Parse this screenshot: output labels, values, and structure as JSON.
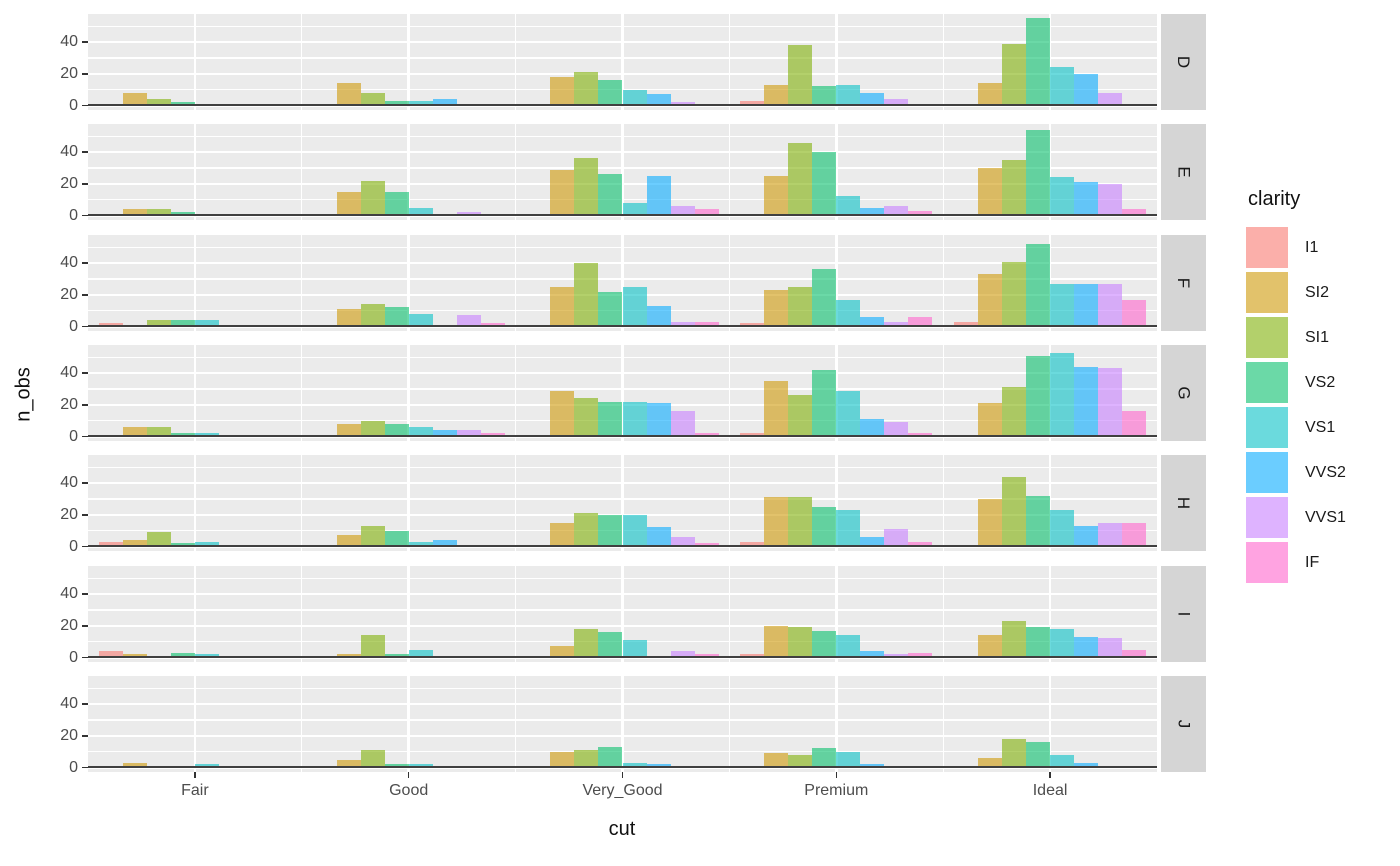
{
  "chart_data": {
    "type": "bar",
    "subtype": "dodged, faceted by row",
    "title": "",
    "xlabel": "cut",
    "ylabel": "n_obs",
    "legend_title": "clarity",
    "legend_position": "right",
    "facet_rows": [
      "D",
      "E",
      "F",
      "G",
      "H",
      "I",
      "J"
    ],
    "categories": [
      "Fair",
      "Good",
      "Very_Good",
      "Premium",
      "Ideal"
    ],
    "series_levels": [
      "I1",
      "SI2",
      "SI1",
      "VS2",
      "VS1",
      "VVS2",
      "VVS1",
      "IF"
    ],
    "series_colors": {
      "I1": "rgba(248,118,109,0.58)",
      "SI2": "rgba(205,150,0,0.58)",
      "SI1": "rgba(124,174,0,0.58)",
      "VS2": "rgba(0,190,103,0.58)",
      "VS1": "rgba(0,191,196,0.58)",
      "VVS2": "rgba(0,169,255,0.58)",
      "VVS1": "rgba(199,124,255,0.58)",
      "IF": "rgba(255,97,204,0.58)"
    },
    "y_ticks": [
      0,
      20,
      40
    ],
    "y_minor_ticks": [
      10,
      30,
      50
    ],
    "ylim": [
      0,
      57.8
    ],
    "grid": "ggplot gray panels with white major/minor gridlines",
    "values": {
      "D": [
        [
          0,
          8,
          4,
          2,
          0,
          0,
          1,
          0
        ],
        [
          1,
          14,
          8,
          3,
          3,
          4,
          1,
          0
        ],
        [
          0,
          18,
          21,
          16,
          10,
          7,
          2,
          1
        ],
        [
          3,
          13,
          38,
          12,
          13,
          8,
          4,
          1
        ],
        [
          0,
          14,
          39,
          55,
          24,
          20,
          8,
          1
        ]
      ],
      "E": [
        [
          1,
          4,
          4,
          2,
          0,
          1,
          0,
          0
        ],
        [
          1,
          15,
          22,
          15,
          5,
          0,
          2,
          1
        ],
        [
          1,
          29,
          36,
          26,
          8,
          25,
          6,
          4
        ],
        [
          1,
          25,
          46,
          40,
          12,
          5,
          6,
          3
        ],
        [
          0,
          30,
          35,
          54,
          24,
          21,
          20,
          4
        ]
      ],
      "F": [
        [
          2,
          1,
          4,
          4,
          4,
          0,
          1,
          1
        ],
        [
          1,
          11,
          14,
          12,
          8,
          0,
          7,
          2
        ],
        [
          1,
          25,
          40,
          22,
          25,
          13,
          3,
          3
        ],
        [
          2,
          23,
          25,
          36,
          17,
          6,
          3,
          6
        ],
        [
          3,
          33,
          41,
          52,
          27,
          27,
          27,
          17
        ]
      ],
      "G": [
        [
          1,
          6,
          6,
          2,
          2,
          1,
          0,
          0
        ],
        [
          1,
          8,
          10,
          8,
          6,
          4,
          4,
          2
        ],
        [
          1,
          29,
          24,
          22,
          22,
          21,
          16,
          2
        ],
        [
          2,
          35,
          26,
          42,
          29,
          11,
          9,
          2
        ],
        [
          1,
          21,
          31,
          51,
          53,
          44,
          43,
          16
        ]
      ],
      "H": [
        [
          3,
          4,
          9,
          2,
          3,
          0,
          0,
          0
        ],
        [
          0,
          7,
          13,
          10,
          3,
          4,
          1,
          0
        ],
        [
          1,
          15,
          21,
          20,
          20,
          12,
          6,
          2
        ],
        [
          3,
          31,
          31,
          25,
          23,
          6,
          11,
          3
        ],
        [
          1,
          30,
          44,
          32,
          23,
          13,
          15,
          15
        ]
      ],
      "I": [
        [
          4,
          2,
          1,
          3,
          2,
          0,
          0,
          0
        ],
        [
          1,
          2,
          14,
          2,
          5,
          1,
          1,
          1
        ],
        [
          1,
          7,
          18,
          16,
          11,
          1,
          4,
          2
        ],
        [
          2,
          20,
          19,
          17,
          14,
          4,
          2,
          3
        ],
        [
          1,
          14,
          23,
          19,
          18,
          13,
          12,
          5
        ]
      ],
      "J": [
        [
          1,
          3,
          1,
          0,
          2,
          0,
          0,
          0
        ],
        [
          0,
          5,
          11,
          2,
          2,
          0,
          0,
          0
        ],
        [
          1,
          10,
          11,
          13,
          3,
          2,
          1,
          0
        ],
        [
          1,
          9,
          8,
          12,
          10,
          2,
          1,
          1
        ],
        [
          0,
          6,
          18,
          16,
          8,
          3,
          1,
          1
        ]
      ]
    },
    "colors": {
      "panel_background": "#EBEBEB",
      "gridline": "#FFFFFF",
      "strip_background": "#D5D5D5",
      "tick_text": "#4D4D4D",
      "title_text": "#111111",
      "zero_line": "#404040"
    }
  }
}
